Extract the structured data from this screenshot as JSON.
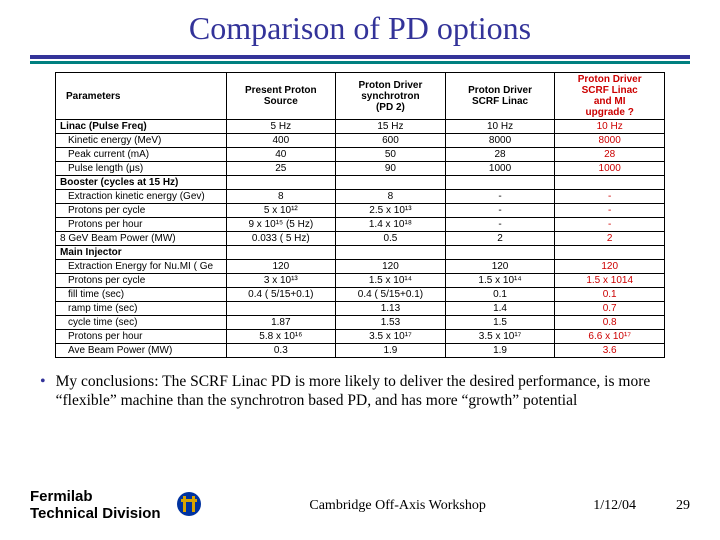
{
  "title": "Comparison of PD options",
  "title_color": "#333399",
  "columns": [
    "Parameters",
    "Present Proton\nSource",
    "Proton Driver\nsynchrotron\n(PD 2)",
    "Proton Driver\nSCRF Linac",
    "Proton Driver\nSCRF Linac\nand MI\nupgrade ?"
  ],
  "col5_red": true,
  "sections": [
    {
      "header": "Linac (Pulse Freq)",
      "header_values": [
        "5 Hz",
        "15 Hz",
        "10 Hz",
        "10 Hz"
      ],
      "rows": [
        {
          "label": "Kinetic energy (MeV)",
          "v": [
            "400",
            "600",
            "8000",
            "8000"
          ]
        },
        {
          "label": "Peak current (mA)",
          "v": [
            "40",
            "50",
            "28",
            "28"
          ]
        },
        {
          "label": "Pulse length (μs)",
          "v": [
            "25",
            "90",
            "1000",
            "1000"
          ]
        }
      ]
    },
    {
      "header": "Booster (cycles at 15 Hz)",
      "header_values": [
        "",
        "",
        "",
        ""
      ],
      "rows": [
        {
          "label": "Extraction kinetic energy (Gev)",
          "v": [
            "8",
            "8",
            "-",
            "-"
          ]
        },
        {
          "label": "Protons per cycle",
          "v": [
            "5 x 10¹²",
            "2.5 x 10¹³",
            "-",
            "-"
          ]
        },
        {
          "label": "Protons per hour",
          "v": [
            "9 x 10¹⁵ (5 Hz)",
            "1.4 x 10¹⁸",
            "-",
            "-"
          ]
        },
        {
          "label": "8 GeV Beam Power (MW)",
          "v": [
            "0.033 ( 5 Hz)",
            "0.5",
            "2",
            "2"
          ],
          "label_align": "left-outer"
        }
      ]
    },
    {
      "header": "Main Injector",
      "header_values": [
        "",
        "",
        "",
        ""
      ],
      "rows": [
        {
          "label": "Extraction Energy for Nu.MI ( Ge",
          "v": [
            "120",
            "120",
            "120",
            "120"
          ]
        },
        {
          "label": "Protons per cycle",
          "v": [
            "3 x 10¹³",
            "1.5 x 10¹⁴",
            "1.5 x 10¹⁴",
            "1.5 x 1014"
          ]
        },
        {
          "label": "fill time (sec)",
          "v": [
            "0.4 ( 5/15+0.1)",
            "0.4 ( 5/15+0.1)",
            "0.1",
            "0.1"
          ]
        },
        {
          "label": "ramp time (sec)",
          "v": [
            "",
            "1.13",
            "1.4",
            "0.7"
          ]
        },
        {
          "label": "cycle time (sec)",
          "v": [
            "1.87",
            "1.53",
            "1.5",
            "0.8"
          ]
        },
        {
          "label": "Protons per hour",
          "v": [
            "5.8 x 10¹⁶",
            "3.5 x 10¹⁷",
            "3.5 x 10¹⁷",
            "6.6 x 10¹⁷"
          ]
        },
        {
          "label": "Ave Beam Power (MW)",
          "v": [
            "0.3",
            "1.9",
            "1.9",
            "3.6"
          ]
        }
      ]
    }
  ],
  "bullet": "My conclusions: The SCRF Linac PD is more likely to deliver the desired performance, is more “flexible” machine than the synchrotron based PD, and has more “growth” potential",
  "footer": {
    "lab_line1": "Fermilab",
    "lab_line2": "Technical Division",
    "venue": "Cambridge Off-Axis Workshop",
    "date": "1/12/04",
    "page": "29"
  },
  "logo_colors": {
    "outer": "#0033a0",
    "inner": "#d9a400"
  }
}
